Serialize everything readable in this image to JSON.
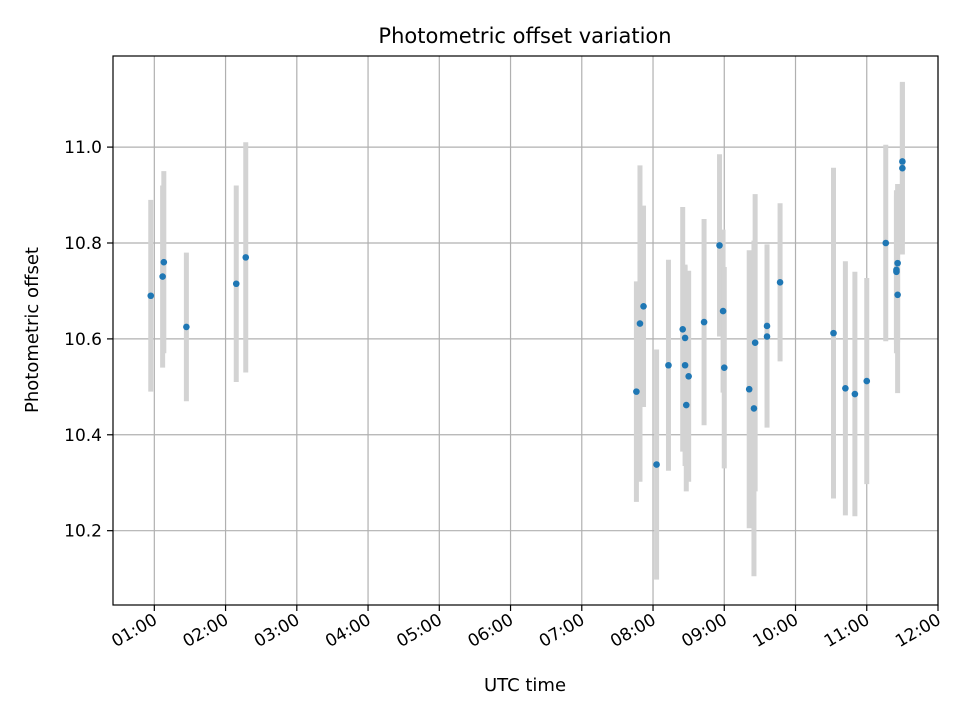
{
  "chart_data": {
    "type": "scatter",
    "title": "Photometric offset variation",
    "xlabel": "UTC time",
    "ylabel": "Photometric offset",
    "x_unit": "hours UTC",
    "xlim": [
      0.42,
      12.0
    ],
    "ylim": [
      10.045,
      11.19
    ],
    "x_ticks": [
      "01:00",
      "02:00",
      "03:00",
      "04:00",
      "05:00",
      "06:00",
      "07:00",
      "08:00",
      "09:00",
      "10:00",
      "11:00",
      "12:00"
    ],
    "y_ticks": [
      "10.2",
      "10.4",
      "10.6",
      "10.8",
      "11.0"
    ],
    "grid": true,
    "colors": {
      "marker": "#1f77b4",
      "errorbar": "#d3d3d3",
      "grid": "#b0b0b0"
    },
    "series": [
      {
        "points": [
          {
            "x": "00:57",
            "y": 10.69,
            "yerr": 0.2
          },
          {
            "x": "01:07",
            "y": 10.73,
            "yerr": 0.19
          },
          {
            "x": "01:08",
            "y": 10.76,
            "yerr": 0.19
          },
          {
            "x": "01:27",
            "y": 10.625,
            "yerr": 0.155
          },
          {
            "x": "02:09",
            "y": 10.715,
            "yerr": 0.205
          },
          {
            "x": "02:17",
            "y": 10.77,
            "yerr": 0.24
          },
          {
            "x": "07:46",
            "y": 10.49,
            "yerr": 0.23
          },
          {
            "x": "07:49",
            "y": 10.632,
            "yerr": 0.33
          },
          {
            "x": "07:52",
            "y": 10.668,
            "yerr": 0.21
          },
          {
            "x": "08:03",
            "y": 10.338,
            "yerr": 0.24
          },
          {
            "x": "08:13",
            "y": 10.545,
            "yerr": 0.22
          },
          {
            "x": "08:25",
            "y": 10.62,
            "yerr": 0.255
          },
          {
            "x": "08:27",
            "y": 10.545,
            "yerr": 0.21
          },
          {
            "x": "08:27",
            "y": 10.602,
            "yerr": 0.15
          },
          {
            "x": "08:28",
            "y": 10.462,
            "yerr": 0.18
          },
          {
            "x": "08:30",
            "y": 10.522,
            "yerr": 0.22
          },
          {
            "x": "08:43",
            "y": 10.635,
            "yerr": 0.215
          },
          {
            "x": "08:56",
            "y": 10.795,
            "yerr": 0.19
          },
          {
            "x": "08:59",
            "y": 10.658,
            "yerr": 0.17
          },
          {
            "x": "09:00",
            "y": 10.54,
            "yerr": 0.21
          },
          {
            "x": "09:21",
            "y": 10.495,
            "yerr": 0.29
          },
          {
            "x": "09:25",
            "y": 10.455,
            "yerr": 0.35
          },
          {
            "x": "09:26",
            "y": 10.592,
            "yerr": 0.31
          },
          {
            "x": "09:36",
            "y": 10.605,
            "yerr": 0.19
          },
          {
            "x": "09:36",
            "y": 10.627,
            "yerr": 0.17
          },
          {
            "x": "09:47",
            "y": 10.718,
            "yerr": 0.165
          },
          {
            "x": "10:32",
            "y": 10.612,
            "yerr": 0.345
          },
          {
            "x": "10:42",
            "y": 10.497,
            "yerr": 0.265
          },
          {
            "x": "10:50",
            "y": 10.485,
            "yerr": 0.255
          },
          {
            "x": "11:00",
            "y": 10.512,
            "yerr": 0.215
          },
          {
            "x": "11:16",
            "y": 10.8,
            "yerr": 0.205
          },
          {
            "x": "11:25",
            "y": 10.74,
            "yerr": 0.17
          },
          {
            "x": "11:25",
            "y": 10.744,
            "yerr": 0.155
          },
          {
            "x": "11:26",
            "y": 10.758,
            "yerr": 0.165
          },
          {
            "x": "11:26",
            "y": 10.692,
            "yerr": 0.205
          },
          {
            "x": "11:30",
            "y": 10.956,
            "yerr": 0.18
          },
          {
            "x": "11:30",
            "y": 10.97,
            "yerr": 0.165
          }
        ]
      }
    ]
  }
}
